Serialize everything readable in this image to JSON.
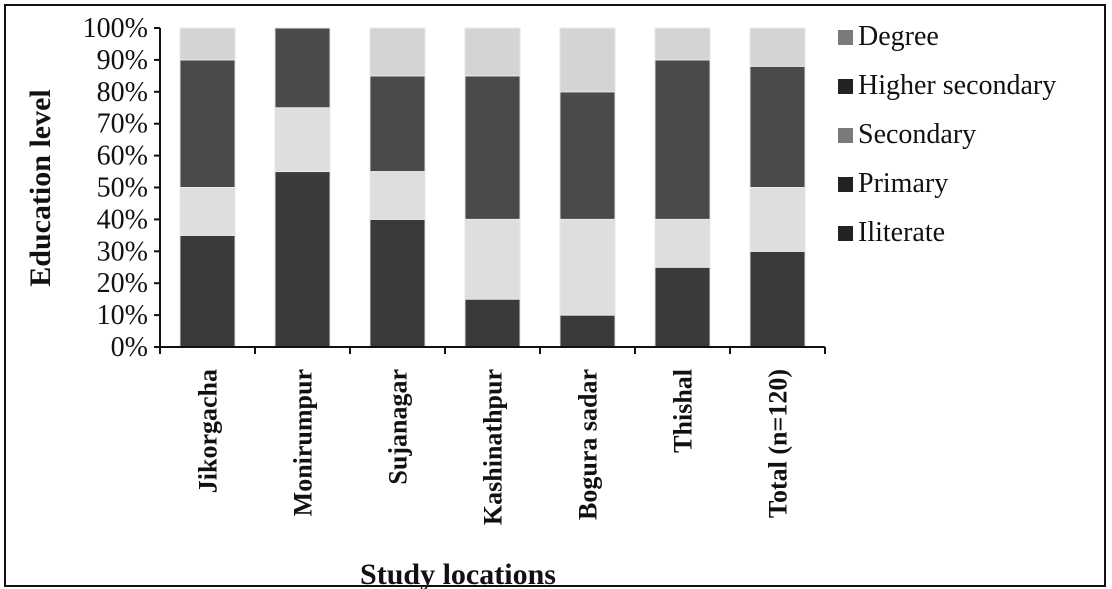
{
  "chart_data": {
    "type": "bar",
    "stacked": true,
    "title": "",
    "xlabel": "Study locations",
    "ylabel": "Education level",
    "ylim": [
      0,
      100
    ],
    "yticks": [
      "0%",
      "10%",
      "20%",
      "30%",
      "40%",
      "50%",
      "60%",
      "70%",
      "80%",
      "90%",
      "100%"
    ],
    "categories": [
      "Jikorgacha",
      "Monirumpur",
      "Sujanagar",
      "Kashinathpur",
      "Bogura sadar",
      "Thishal",
      "Total (n=120)"
    ],
    "series": [
      {
        "name": "Iliterate",
        "values": [
          0,
          0,
          0,
          0,
          0,
          0,
          0
        ],
        "color": "#2a2a2a"
      },
      {
        "name": "Primary",
        "values": [
          35,
          55,
          40,
          15,
          10,
          25,
          30
        ],
        "color": "#3a3a3a"
      },
      {
        "name": "Secondary",
        "values": [
          15,
          20,
          15,
          25,
          30,
          15,
          20
        ],
        "color": "#dedede"
      },
      {
        "name": "Higher secondary",
        "values": [
          40,
          25,
          30,
          45,
          40,
          50,
          38
        ],
        "color": "#4a4a4a"
      },
      {
        "name": "Degree",
        "values": [
          10,
          0,
          15,
          15,
          20,
          10,
          12
        ],
        "color": "#d4d4d4"
      }
    ],
    "legend_order": [
      "Degree",
      "Higher secondary",
      "Secondary",
      "Primary",
      "Iliterate"
    ],
    "legend_position": "right",
    "grid": false
  }
}
